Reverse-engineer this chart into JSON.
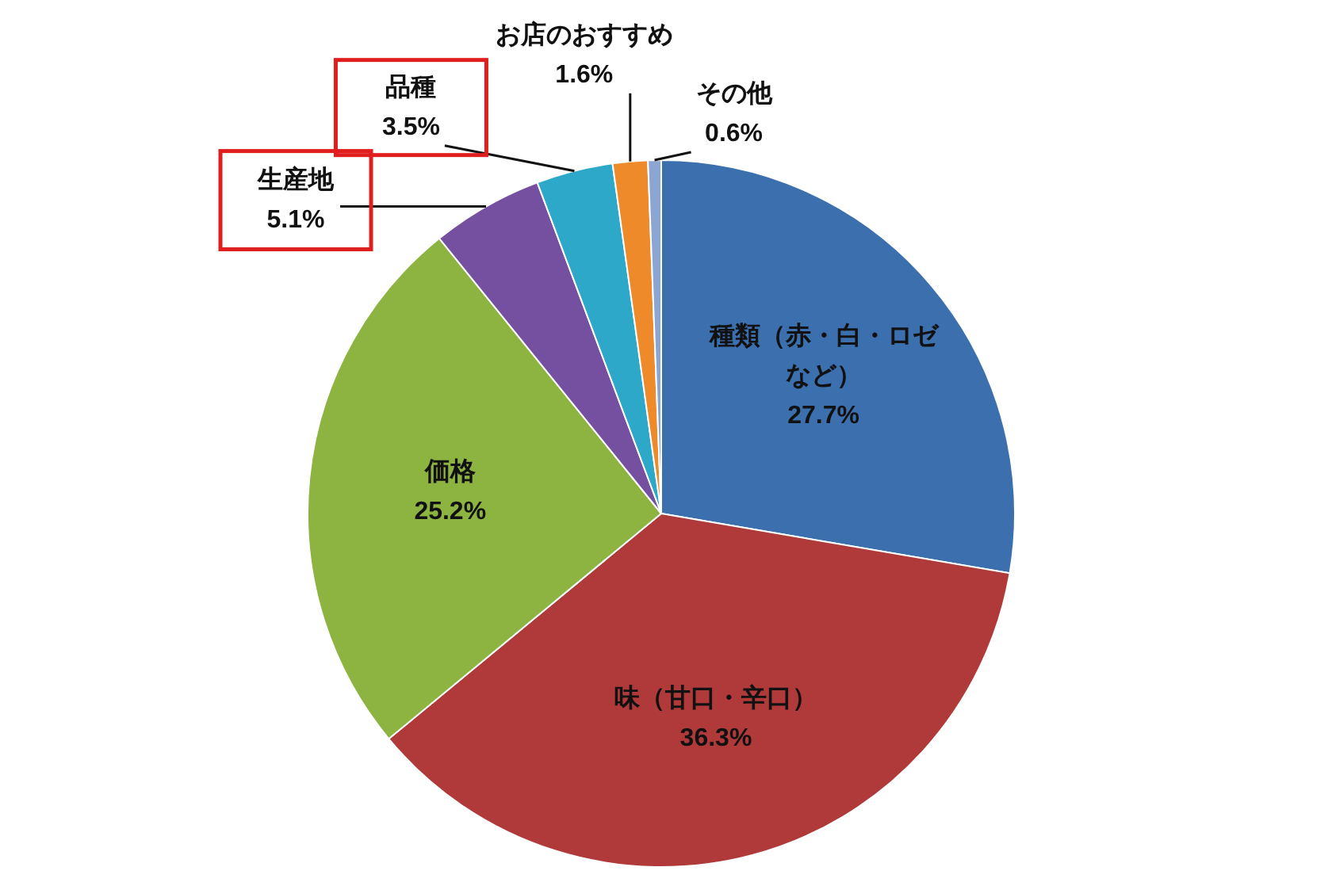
{
  "chart_data": {
    "type": "pie",
    "categories": [
      "種類（赤・白・ロゼなど）",
      "味（甘口・辛口）",
      "価格",
      "生産地",
      "品種",
      "お店のおすすめ",
      "その他"
    ],
    "values": [
      27.7,
      36.3,
      25.2,
      5.1,
      3.5,
      1.6,
      0.6
    ],
    "colors": [
      "#3b6fae",
      "#b03a3a",
      "#8db340",
      "#7650a0",
      "#2ea8c8",
      "#ee8a2a",
      "#8ca6d4"
    ],
    "value_labels": [
      "27.7%",
      "36.3%",
      "25.2%",
      "5.1%",
      "3.5%",
      "1.6%",
      "0.6%"
    ]
  }
}
